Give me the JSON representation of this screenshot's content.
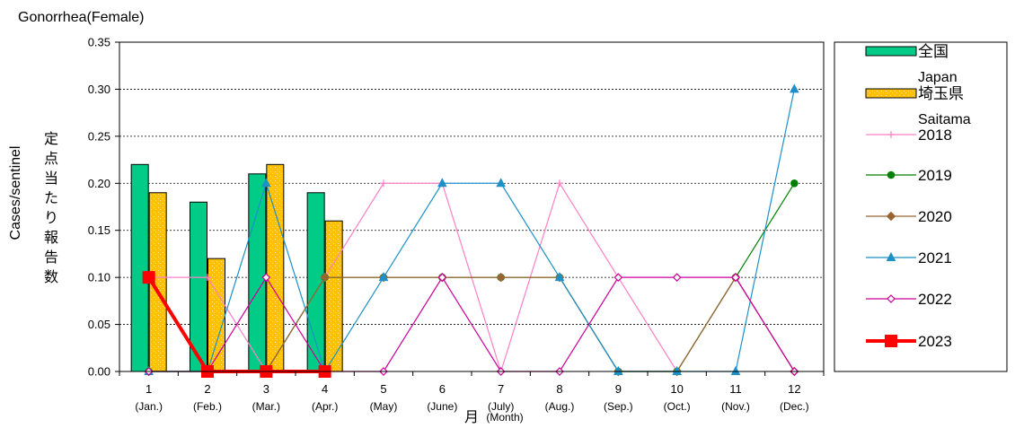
{
  "chart_data": {
    "type": "bar",
    "title": "Gonorrhea(Female)",
    "ylabel_en": "Cases/sentinel",
    "ylabel_ja": "定点当たり報告数",
    "xlabel_ja": "月",
    "xlabel_en": "(Month)",
    "ylim": [
      0,
      0.35
    ],
    "yticks": [
      "0.00",
      "0.05",
      "0.10",
      "0.15",
      "0.20",
      "0.25",
      "0.30",
      "0.35"
    ],
    "categories": [
      "1",
      "2",
      "3",
      "4",
      "5",
      "6",
      "7",
      "8",
      "9",
      "10",
      "11",
      "12"
    ],
    "month_labels": [
      "(Jan.)",
      "(Feb.)",
      "(Mar.)",
      "(Apr.)",
      "(May)",
      "(June)",
      "(July)",
      "(Aug.)",
      "(Sep.)",
      "(Oct.)",
      "(Nov.)",
      "(Dec.)"
    ],
    "grid": true,
    "legend_position": "right",
    "bars": [
      {
        "name": "全国",
        "sub": "Japan",
        "color": "#00cc88",
        "values": [
          0.22,
          0.18,
          0.21,
          0.19,
          null,
          null,
          null,
          null,
          null,
          null,
          null,
          null
        ]
      },
      {
        "name": "埼玉県",
        "sub": "Saitama",
        "color": "#ffc000",
        "values": [
          0.19,
          0.12,
          0.22,
          0.16,
          null,
          null,
          null,
          null,
          null,
          null,
          null,
          null
        ]
      }
    ],
    "lines": [
      {
        "name": "2018",
        "color": "#ff80c8",
        "marker": "plus",
        "values": [
          0.1,
          0.1,
          0.0,
          0.1,
          0.2,
          0.2,
          0.0,
          0.2,
          0.1,
          0.0,
          0.1,
          0.0
        ]
      },
      {
        "name": "2019",
        "color": "#008000",
        "marker": "circle",
        "values": [
          0.0,
          0.0,
          0.0,
          0.1,
          0.1,
          0.1,
          0.1,
          0.1,
          0.0,
          0.0,
          0.1,
          0.2
        ]
      },
      {
        "name": "2020",
        "color": "#996633",
        "marker": "diamond",
        "values": [
          0.0,
          0.0,
          0.0,
          0.1,
          0.1,
          0.1,
          0.1,
          0.1,
          0.0,
          0.0,
          0.1,
          0.0
        ]
      },
      {
        "name": "2021",
        "color": "#1e90c8",
        "marker": "triangle",
        "values": [
          0.0,
          0.0,
          0.2,
          0.0,
          0.1,
          0.2,
          0.2,
          0.1,
          0.0,
          0.0,
          0.0,
          0.3
        ]
      },
      {
        "name": "2022",
        "color": "#cc0099",
        "marker": "open-diamond",
        "values": [
          0.0,
          0.0,
          0.1,
          0.0,
          0.0,
          0.1,
          0.0,
          0.0,
          0.1,
          0.1,
          0.1,
          0.0
        ]
      },
      {
        "name": "2023",
        "color": "#ff0000",
        "marker": "square",
        "values": [
          0.1,
          0.0,
          0.0,
          0.0,
          null,
          null,
          null,
          null,
          null,
          null,
          null,
          null
        ]
      }
    ]
  }
}
